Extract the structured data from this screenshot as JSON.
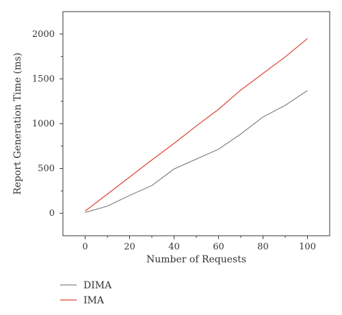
{
  "chart_data": {
    "type": "line",
    "xlabel": "Number of Requests",
    "ylabel": "Report Generation Time (ms)",
    "xlim": [
      -10,
      110
    ],
    "ylim": [
      -250,
      2250
    ],
    "x_ticks": [
      0,
      20,
      40,
      60,
      80,
      100
    ],
    "y_ticks": [
      0,
      500,
      1000,
      1500,
      2000
    ],
    "grid": false,
    "legend_position": "bottom-left",
    "series": [
      {
        "name": "DIMA",
        "color": "#808080",
        "x": [
          0,
          10,
          20,
          30,
          40,
          50,
          60,
          70,
          80,
          90,
          100
        ],
        "y": [
          10,
          80,
          200,
          310,
          495,
          605,
          715,
          885,
          1075,
          1205,
          1370
        ]
      },
      {
        "name": "IMA",
        "color": "#d9412b",
        "x": [
          0,
          10,
          20,
          30,
          40,
          50,
          60,
          70,
          80,
          90,
          100
        ],
        "y": [
          25,
          215,
          405,
          595,
          780,
          975,
          1160,
          1375,
          1560,
          1745,
          1950
        ]
      }
    ]
  }
}
